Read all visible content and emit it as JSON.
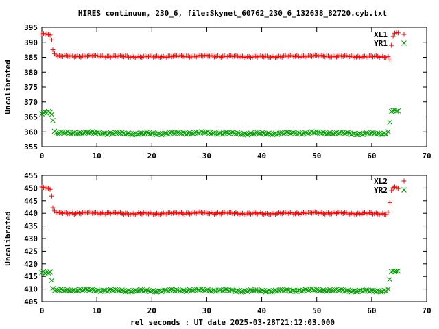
{
  "figure": {
    "title": "HIRES continuum, 230_6, file:Skynet_60762_230_6_132638_82720.cyb.txt",
    "xlabel": "rel seconds : UT date 2025-03-28T21:12:03.000"
  },
  "chart_data": [
    {
      "type": "scatter",
      "ylabel": "Uncalibrated",
      "xlim": [
        0,
        70
      ],
      "ylim": [
        355,
        395
      ],
      "x_ticks": [
        "0",
        "10",
        "20",
        "30",
        "40",
        "50",
        "60",
        "70"
      ],
      "y_ticks": [
        "355",
        "360",
        "365",
        "370",
        "375",
        "380",
        "385",
        "390",
        "395"
      ],
      "legend_position": "top-right",
      "series": [
        {
          "name": "XL1",
          "color": "#ff0000",
          "marker": "plus",
          "points": [
            [
              0,
              392.8
            ],
            [
              0.3,
              393.0
            ],
            [
              0.6,
              392.7
            ],
            [
              0.9,
              392.9
            ],
            [
              1.2,
              392.6
            ],
            [
              1.5,
              392.5
            ],
            [
              1.8,
              390.8
            ],
            [
              2.0,
              387.5
            ],
            [
              2.3,
              386.2
            ],
            [
              2.6,
              385.8
            ],
            [
              63.0,
              385.2
            ],
            [
              63.3,
              384.1
            ],
            [
              63.6,
              389.0
            ],
            [
              63.9,
              392.0
            ],
            [
              64.2,
              393.1
            ],
            [
              64.5,
              393.3
            ],
            [
              64.8,
              393.2
            ]
          ],
          "steady": {
            "x_start": 2.9,
            "x_end": 62.8,
            "step": 0.3,
            "level": 385.3,
            "jitter": 0.35
          }
        },
        {
          "name": "YR1",
          "color": "#00a000",
          "marker": "cross",
          "points": [
            [
              0,
              366.0
            ],
            [
              0.3,
              366.4
            ],
            [
              0.6,
              366.6
            ],
            [
              0.9,
              366.2
            ],
            [
              1.2,
              366.8
            ],
            [
              1.5,
              366.5
            ],
            [
              1.8,
              365.8
            ],
            [
              2.0,
              363.8
            ],
            [
              2.3,
              360.2
            ],
            [
              63.0,
              360.0
            ],
            [
              63.3,
              363.2
            ],
            [
              63.6,
              366.8
            ],
            [
              63.9,
              367.1
            ],
            [
              64.2,
              367.2
            ],
            [
              64.5,
              366.9
            ],
            [
              64.8,
              367.0
            ]
          ],
          "steady": {
            "x_start": 2.6,
            "x_end": 62.8,
            "step": 0.3,
            "level": 359.5,
            "jitter": 0.45
          }
        }
      ]
    },
    {
      "type": "scatter",
      "ylabel": "Uncalibrated",
      "xlim": [
        0,
        70
      ],
      "ylim": [
        405,
        455
      ],
      "x_ticks": [
        "0",
        "10",
        "20",
        "30",
        "40",
        "50",
        "60",
        "70"
      ],
      "y_ticks": [
        "405",
        "410",
        "415",
        "420",
        "425",
        "430",
        "435",
        "440",
        "445",
        "450",
        "455"
      ],
      "legend_position": "top-right",
      "series": [
        {
          "name": "XL2",
          "color": "#ff0000",
          "marker": "plus",
          "points": [
            [
              0,
              450.4
            ],
            [
              0.3,
              450.2
            ],
            [
              0.6,
              450.0
            ],
            [
              0.9,
              450.1
            ],
            [
              1.2,
              449.8
            ],
            [
              1.5,
              449.5
            ],
            [
              1.8,
              446.8
            ],
            [
              2.0,
              442.2
            ],
            [
              2.3,
              440.9
            ],
            [
              2.6,
              440.3
            ],
            [
              63.0,
              440.4
            ],
            [
              63.3,
              444.3
            ],
            [
              63.6,
              449.0
            ],
            [
              63.9,
              450.1
            ],
            [
              64.2,
              450.4
            ],
            [
              64.5,
              450.2
            ],
            [
              64.8,
              449.8
            ]
          ],
          "steady": {
            "x_start": 2.9,
            "x_end": 62.8,
            "step": 0.3,
            "level": 440.0,
            "jitter": 0.45
          }
        },
        {
          "name": "YR2",
          "color": "#00a000",
          "marker": "cross",
          "points": [
            [
              0,
              416.5
            ],
            [
              0.3,
              416.8
            ],
            [
              0.6,
              416.2
            ],
            [
              0.9,
              416.6
            ],
            [
              1.2,
              416.4
            ],
            [
              1.5,
              416.7
            ],
            [
              1.8,
              413.4
            ],
            [
              2.0,
              410.2
            ],
            [
              2.3,
              409.3
            ],
            [
              63.0,
              410.0
            ],
            [
              63.3,
              413.8
            ],
            [
              63.6,
              416.8
            ],
            [
              63.9,
              417.1
            ],
            [
              64.2,
              416.9
            ],
            [
              64.5,
              417.0
            ],
            [
              64.8,
              417.1
            ]
          ],
          "steady": {
            "x_start": 2.6,
            "x_end": 62.8,
            "step": 0.3,
            "level": 409.4,
            "jitter": 0.5
          }
        }
      ]
    }
  ]
}
